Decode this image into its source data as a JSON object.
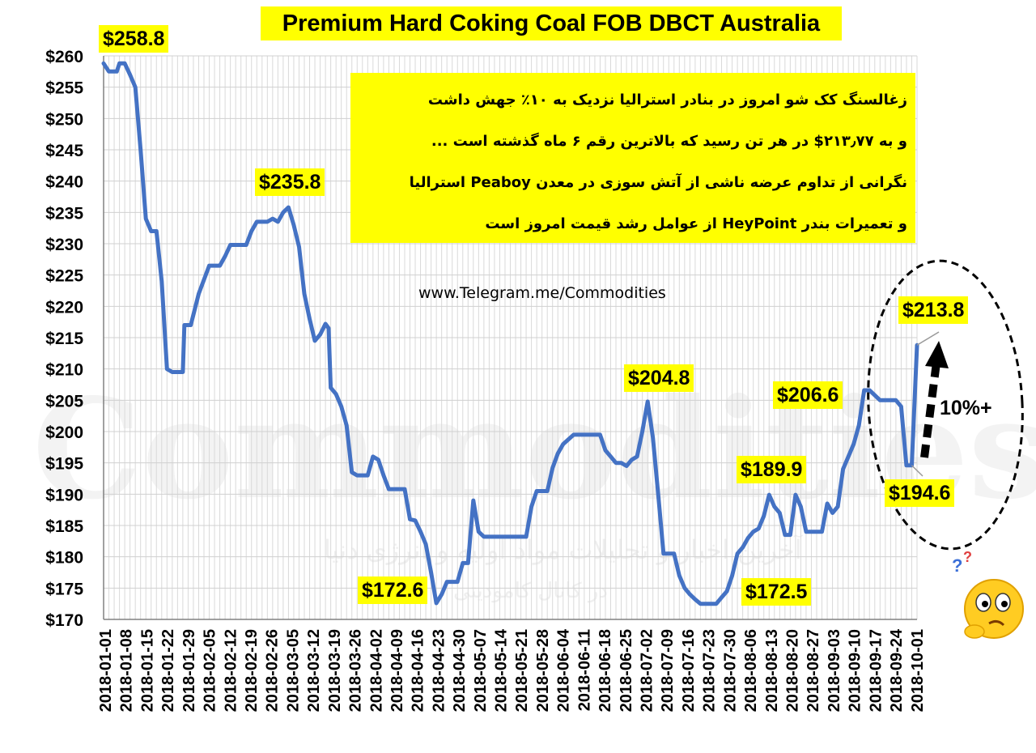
{
  "chart_data": {
    "type": "line",
    "title": "Premium Hard Coking Coal  FOB DBCT Australia",
    "xlabel": "",
    "ylabel": "",
    "ylim": [
      170,
      260
    ],
    "ytick_step": 5,
    "ytick_prefix": "$",
    "grid": true,
    "line_color": "#4472c4",
    "x_tick_labels": [
      "2018-01-01",
      "2018-01-08",
      "2018-01-15",
      "2018-01-22",
      "2018-01-29",
      "2018-02-05",
      "2018-02-12",
      "2018-02-19",
      "2018-02-26",
      "2018-03-05",
      "2018-03-12",
      "2018-03-19",
      "2018-03-26",
      "2018-04-02",
      "2018-04-09",
      "2018-04-16",
      "2018-04-23",
      "2018-04-30",
      "2018-05-07",
      "2018-05-14",
      "2018-05-21",
      "2018-05-28",
      "2018-06-04",
      "2018-06-11",
      "2018-06-18",
      "2018-06-25",
      "2018-07-02",
      "2018-07-09",
      "2018-07-16",
      "2018-07-23",
      "2018-07-30",
      "2018-08-06",
      "2018-08-13",
      "2018-08-20",
      "2018-08-27",
      "2018-09-03",
      "2018-09-10",
      "2018-09-17",
      "2018-09-24",
      "2018-10-01"
    ],
    "series": [
      {
        "values": [
          [
            0,
            258.8
          ],
          [
            1,
            257.5
          ],
          [
            2.5,
            257.5
          ],
          [
            3,
            258.8
          ],
          [
            4,
            258.8
          ],
          [
            5,
            257
          ],
          [
            6,
            255
          ],
          [
            7,
            245
          ],
          [
            8,
            234
          ],
          [
            9,
            232
          ],
          [
            10,
            232
          ],
          [
            11,
            224
          ],
          [
            12,
            210
          ],
          [
            13,
            209.5
          ],
          [
            14,
            209.5
          ],
          [
            15,
            209.5
          ],
          [
            15.3,
            217
          ],
          [
            16.5,
            217
          ],
          [
            18,
            222
          ],
          [
            20,
            226.5
          ],
          [
            22,
            226.5
          ],
          [
            23,
            228
          ],
          [
            24,
            229.8
          ],
          [
            27,
            229.8
          ],
          [
            28,
            232
          ],
          [
            29,
            233.5
          ],
          [
            31,
            233.5
          ],
          [
            32,
            234
          ],
          [
            33,
            233.5
          ],
          [
            34,
            235
          ],
          [
            35,
            235.8
          ],
          [
            36,
            233
          ],
          [
            37,
            229.5
          ],
          [
            38,
            222
          ],
          [
            39,
            218
          ],
          [
            40,
            214.5
          ],
          [
            41,
            215.5
          ],
          [
            42,
            217.2
          ],
          [
            42.6,
            216.5
          ],
          [
            43,
            207
          ],
          [
            44,
            206
          ],
          [
            45,
            204
          ],
          [
            46,
            201
          ],
          [
            47,
            193.5
          ],
          [
            48,
            193
          ],
          [
            49,
            193
          ],
          [
            50,
            193
          ],
          [
            51,
            196
          ],
          [
            52,
            195.5
          ],
          [
            53,
            193
          ],
          [
            54,
            190.8
          ],
          [
            57,
            190.8
          ],
          [
            58,
            186
          ],
          [
            59,
            185.8
          ],
          [
            60,
            184
          ],
          [
            61,
            182
          ],
          [
            62,
            177.5
          ],
          [
            63,
            172.6
          ],
          [
            64,
            174
          ],
          [
            65,
            176
          ],
          [
            66,
            176
          ],
          [
            67,
            176
          ],
          [
            68,
            179
          ],
          [
            69,
            179
          ],
          [
            70,
            189
          ],
          [
            71,
            184
          ],
          [
            72,
            183.2
          ],
          [
            80,
            183.2
          ],
          [
            81,
            188
          ],
          [
            82,
            190.5
          ],
          [
            84,
            190.5
          ],
          [
            85,
            194.2
          ],
          [
            86,
            196.5
          ],
          [
            87,
            198
          ],
          [
            89,
            199.5
          ],
          [
            94,
            199.5
          ],
          [
            95,
            197
          ],
          [
            96,
            196
          ],
          [
            97,
            195
          ],
          [
            98,
            195
          ],
          [
            99,
            194.5
          ],
          [
            100,
            195.5
          ],
          [
            101,
            196
          ],
          [
            102,
            200
          ],
          [
            103,
            204.8
          ],
          [
            104,
            199
          ],
          [
            105,
            190
          ],
          [
            106,
            180.5
          ],
          [
            107,
            180.5
          ],
          [
            108,
            180.5
          ],
          [
            109,
            177
          ],
          [
            110,
            175
          ],
          [
            111,
            174
          ],
          [
            112,
            173.2
          ],
          [
            113,
            172.5
          ],
          [
            114,
            172.5
          ],
          [
            116,
            172.5
          ],
          [
            117,
            173.5
          ],
          [
            118,
            174.5
          ],
          [
            119,
            177
          ],
          [
            120,
            180.5
          ],
          [
            121,
            181.5
          ],
          [
            122,
            183
          ],
          [
            123,
            184
          ],
          [
            124,
            184.5
          ],
          [
            125,
            186.5
          ],
          [
            126,
            189.9
          ],
          [
            127,
            188
          ],
          [
            128,
            187
          ],
          [
            129,
            183.5
          ],
          [
            130,
            183.5
          ],
          [
            131,
            189.9
          ],
          [
            132,
            188
          ],
          [
            133,
            184
          ],
          [
            134,
            184
          ],
          [
            135,
            184
          ],
          [
            136,
            184
          ],
          [
            137,
            188.5
          ],
          [
            138,
            187
          ],
          [
            139,
            188
          ],
          [
            140,
            194
          ],
          [
            141,
            196
          ],
          [
            142,
            198
          ],
          [
            143,
            201
          ],
          [
            144,
            206.6
          ],
          [
            145,
            206.6
          ],
          [
            147,
            205
          ],
          [
            150,
            205
          ],
          [
            151,
            204
          ],
          [
            152,
            194.6
          ],
          [
            153,
            194.6
          ],
          [
            154,
            213.8
          ]
        ]
      }
    ],
    "data_labels": [
      {
        "text": "$258.8",
        "x": 0,
        "y": 258.8
      },
      {
        "text": "$235.8",
        "x": 35,
        "y": 235.8
      },
      {
        "text": "$172.6",
        "x": 63,
        "y": 172.6
      },
      {
        "text": "$204.8",
        "x": 103,
        "y": 204.8
      },
      {
        "text": "$172.5",
        "x": 116,
        "y": 172.5
      },
      {
        "text": "$189.9",
        "x": 126,
        "y": 189.9
      },
      {
        "text": "$206.6",
        "x": 144,
        "y": 206.6
      },
      {
        "text": "$213.8",
        "x": 154,
        "y": 213.8
      },
      {
        "text": "$194.6",
        "x": 152,
        "y": 194.6
      }
    ],
    "annotations": {
      "change_label": "10%+",
      "note_lines": [
        "زغالسنگ کک شو امروز در بنادر استرالیا نزدیک به ۱۰٪ جهش داشت",
        "و به ۲۱۳٫۷۷$ در هر تن رسید که بالاترین رقم ۶ ماه گذشته است  ...",
        "نگرانی از تداوم عرضه ناشی از آتش سوزی در معدن Peaboy استرالیا",
        "و تعمیرات بندر HeyPoint از عوامل رشد قیمت امروز است"
      ],
      "website": "www.Telegram.me/Commodities"
    }
  },
  "watermark": {
    "main": "Commodities",
    "line1": "آخرین اخبار و تحلیلات مواد اولیه و انرژی دنیا",
    "line2": "در کانال کامودیتی"
  }
}
